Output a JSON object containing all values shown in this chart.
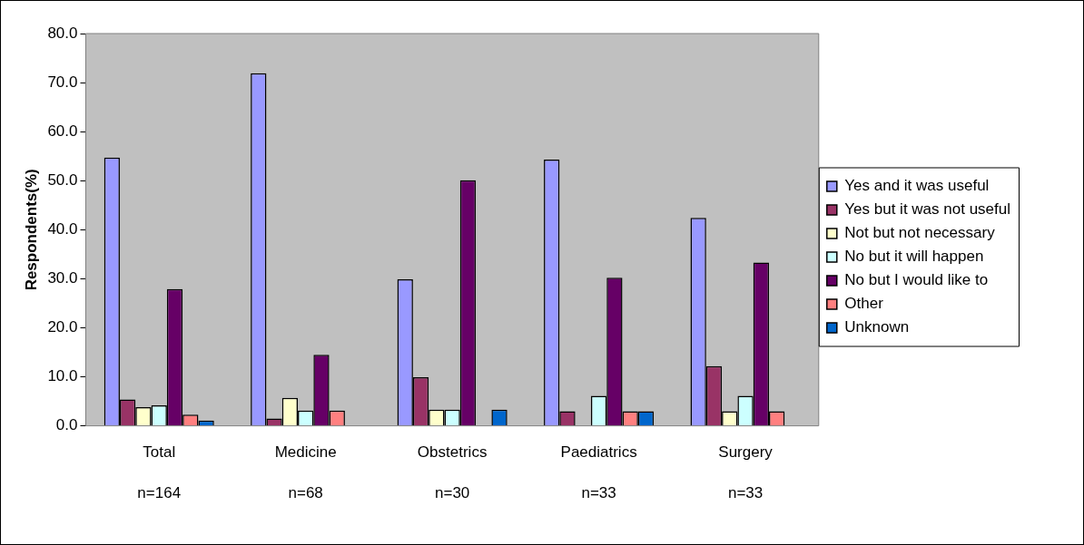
{
  "chart_data": {
    "type": "bar",
    "ylabel": "Respondents(%)",
    "categories": [
      "Total",
      "Medicine",
      "Obstetrics",
      "Paediatrics",
      "Surgery"
    ],
    "annotations": [
      "n=164",
      "n=68",
      "n=30",
      "n=33",
      "n=33"
    ],
    "series": [
      {
        "name": "Yes and it was useful",
        "color": "#9999ff",
        "values": [
          54.7,
          71.9,
          29.9,
          54.3,
          42.4
        ]
      },
      {
        "name": "Yes but it was not useful",
        "color": "#993366",
        "values": [
          5.4,
          1.5,
          9.9,
          3.0,
          12.2
        ]
      },
      {
        "name": "Not but not necessary",
        "color": "#ffffcc",
        "values": [
          3.8,
          5.7,
          3.3,
          0,
          3.0
        ]
      },
      {
        "name": "No but it will happen",
        "color": "#ccffff",
        "values": [
          4.2,
          3.1,
          3.3,
          6.1,
          6.1
        ]
      },
      {
        "name": "No but I would like to",
        "color": "#660066",
        "values": [
          27.9,
          14.5,
          50.1,
          30.2,
          33.3
        ]
      },
      {
        "name": "Other",
        "color": "#ff8080",
        "values": [
          2.3,
          3.1,
          0,
          3.0,
          3.0
        ]
      },
      {
        "name": "Unknown",
        "color": "#0066cc",
        "values": [
          1.1,
          0,
          3.3,
          3.0,
          0
        ]
      }
    ],
    "ylim": [
      0,
      80
    ],
    "yticks": [
      {
        "value": 0,
        "label": "0.0"
      },
      {
        "value": 10,
        "label": "10.0"
      },
      {
        "value": 20,
        "label": "20.0"
      },
      {
        "value": 30,
        "label": "30.0"
      },
      {
        "value": 40,
        "label": "40.0"
      },
      {
        "value": 50,
        "label": "50.0"
      },
      {
        "value": 60,
        "label": "60.0"
      },
      {
        "value": 70,
        "label": "70.0"
      },
      {
        "value": 80,
        "label": "80.0"
      }
    ],
    "grid": false,
    "legend": "right"
  }
}
